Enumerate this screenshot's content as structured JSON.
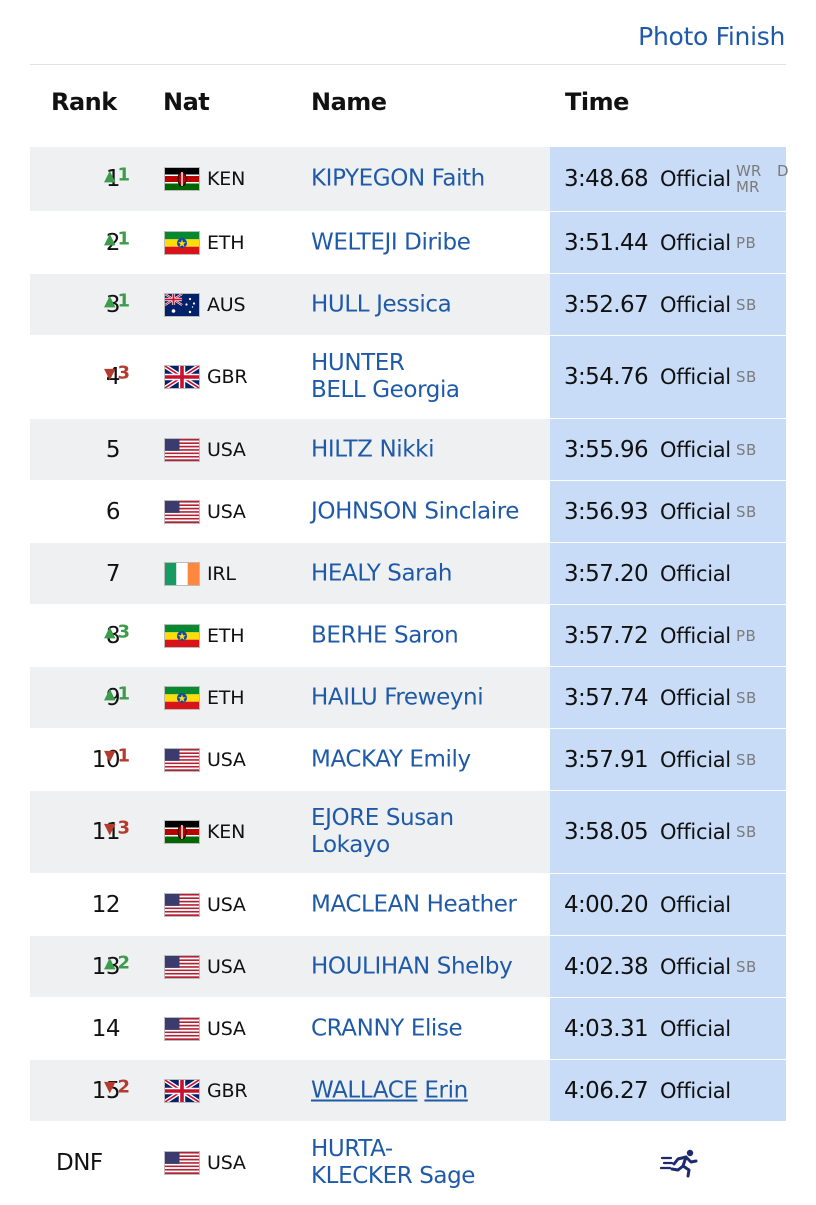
{
  "header": {
    "photo_finish": "Photo Finish",
    "rank": "Rank",
    "nat": "Nat",
    "name": "Name",
    "time": "Time"
  },
  "rows": [
    {
      "rank": "1",
      "move": "1",
      "dir": "up",
      "flag": "KEN",
      "nat": "KEN",
      "name": "KIPYEGON Faith",
      "time": "3:48.68",
      "status": "Official",
      "badge": "WR\nMR",
      "badge_extra": "D"
    },
    {
      "rank": "2",
      "move": "1",
      "dir": "up",
      "flag": "ETH",
      "nat": "ETH",
      "name": "WELTEJI Diribe",
      "time": "3:51.44",
      "status": "Official",
      "badge": "PB"
    },
    {
      "rank": "3",
      "move": "1",
      "dir": "up",
      "flag": "AUS",
      "nat": "AUS",
      "name": "HULL Jessica",
      "time": "3:52.67",
      "status": "Official",
      "badge": "SB"
    },
    {
      "rank": "4",
      "move": "3",
      "dir": "down",
      "flag": "GBR",
      "nat": "GBR",
      "name_lines": [
        "HUNTER",
        "BELL Georgia"
      ],
      "time": "3:54.76",
      "status": "Official",
      "badge": "SB"
    },
    {
      "rank": "5",
      "move": "",
      "dir": "",
      "flag": "USA",
      "nat": "USA",
      "name": "HILTZ Nikki",
      "time": "3:55.96",
      "status": "Official",
      "badge": "SB"
    },
    {
      "rank": "6",
      "move": "",
      "dir": "",
      "flag": "USA",
      "nat": "USA",
      "name": "JOHNSON Sinclaire",
      "time": "3:56.93",
      "status": "Official",
      "badge": "SB"
    },
    {
      "rank": "7",
      "move": "",
      "dir": "",
      "flag": "IRL",
      "nat": "IRL",
      "name": "HEALY Sarah",
      "time": "3:57.20",
      "status": "Official",
      "badge": ""
    },
    {
      "rank": "8",
      "move": "3",
      "dir": "up",
      "flag": "ETH",
      "nat": "ETH",
      "name": "BERHE Saron",
      "time": "3:57.72",
      "status": "Official",
      "badge": "PB"
    },
    {
      "rank": "9",
      "move": "1",
      "dir": "up",
      "flag": "ETH",
      "nat": "ETH",
      "name": "HAILU Freweyni",
      "time": "3:57.74",
      "status": "Official",
      "badge": "SB"
    },
    {
      "rank": "10",
      "move": "1",
      "dir": "down",
      "flag": "USA",
      "nat": "USA",
      "name": "MACKAY Emily",
      "time": "3:57.91",
      "status": "Official",
      "badge": "SB"
    },
    {
      "rank": "11",
      "move": "3",
      "dir": "down",
      "flag": "KEN",
      "nat": "KEN",
      "name_lines": [
        "EJORE Susan",
        "Lokayo"
      ],
      "time": "3:58.05",
      "status": "Official",
      "badge": "SB"
    },
    {
      "rank": "12",
      "move": "",
      "dir": "",
      "flag": "USA",
      "nat": "USA",
      "name": "MACLEAN Heather",
      "time": "4:00.20",
      "status": "Official",
      "badge": ""
    },
    {
      "rank": "13",
      "move": "2",
      "dir": "up",
      "flag": "USA",
      "nat": "USA",
      "name": "HOULIHAN Shelby",
      "time": "4:02.38",
      "status": "Official",
      "badge": "SB"
    },
    {
      "rank": "14",
      "move": "",
      "dir": "",
      "flag": "USA",
      "nat": "USA",
      "name": "CRANNY Elise",
      "time": "4:03.31",
      "status": "Official",
      "badge": ""
    },
    {
      "rank": "15",
      "move": "2",
      "dir": "down",
      "flag": "GBR",
      "nat": "GBR",
      "name_parts": [
        "WALLACE",
        "Erin"
      ],
      "time": "4:06.27",
      "status": "Official",
      "badge": ""
    },
    {
      "rank": "DNF",
      "move": "",
      "dir": "",
      "flag": "USA",
      "nat": "USA",
      "name_lines": [
        "HURTA-",
        "KLECKER Sage"
      ],
      "time": "",
      "status": "",
      "badge": "",
      "icon": "running-icon"
    }
  ],
  "colors": {
    "link": "#1f5aa8",
    "time_bg": "#c9dcf7",
    "row_shade": "#eef0f2",
    "up": "#3d9b4c",
    "down": "#b53b2e"
  }
}
